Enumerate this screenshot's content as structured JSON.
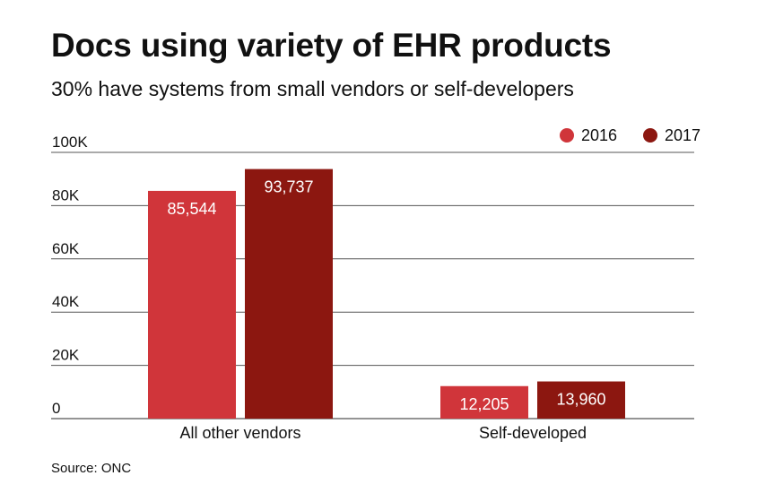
{
  "chart_data": {
    "type": "bar",
    "title": "Docs using variety of EHR products",
    "subtitle": "30% have systems from small vendors or self-developers",
    "categories": [
      "All other vendors",
      "Self-developed"
    ],
    "series": [
      {
        "name": "2016",
        "values": [
          85544,
          12205
        ],
        "labels": [
          "85,544",
          "12,205"
        ],
        "color": "#d0353a"
      },
      {
        "name": "2017",
        "values": [
          93737,
          13960
        ],
        "labels": [
          "93,737",
          "13,960"
        ],
        "color": "#8c1710"
      }
    ],
    "yticks": [
      0,
      20000,
      40000,
      60000,
      80000,
      100000
    ],
    "ytick_labels": [
      "0",
      "20K",
      "40K",
      "60K",
      "80K",
      "100K"
    ],
    "ylim": [
      0,
      100000
    ],
    "grid": true,
    "legend_position": "top-right",
    "source": "Source: ONC"
  }
}
